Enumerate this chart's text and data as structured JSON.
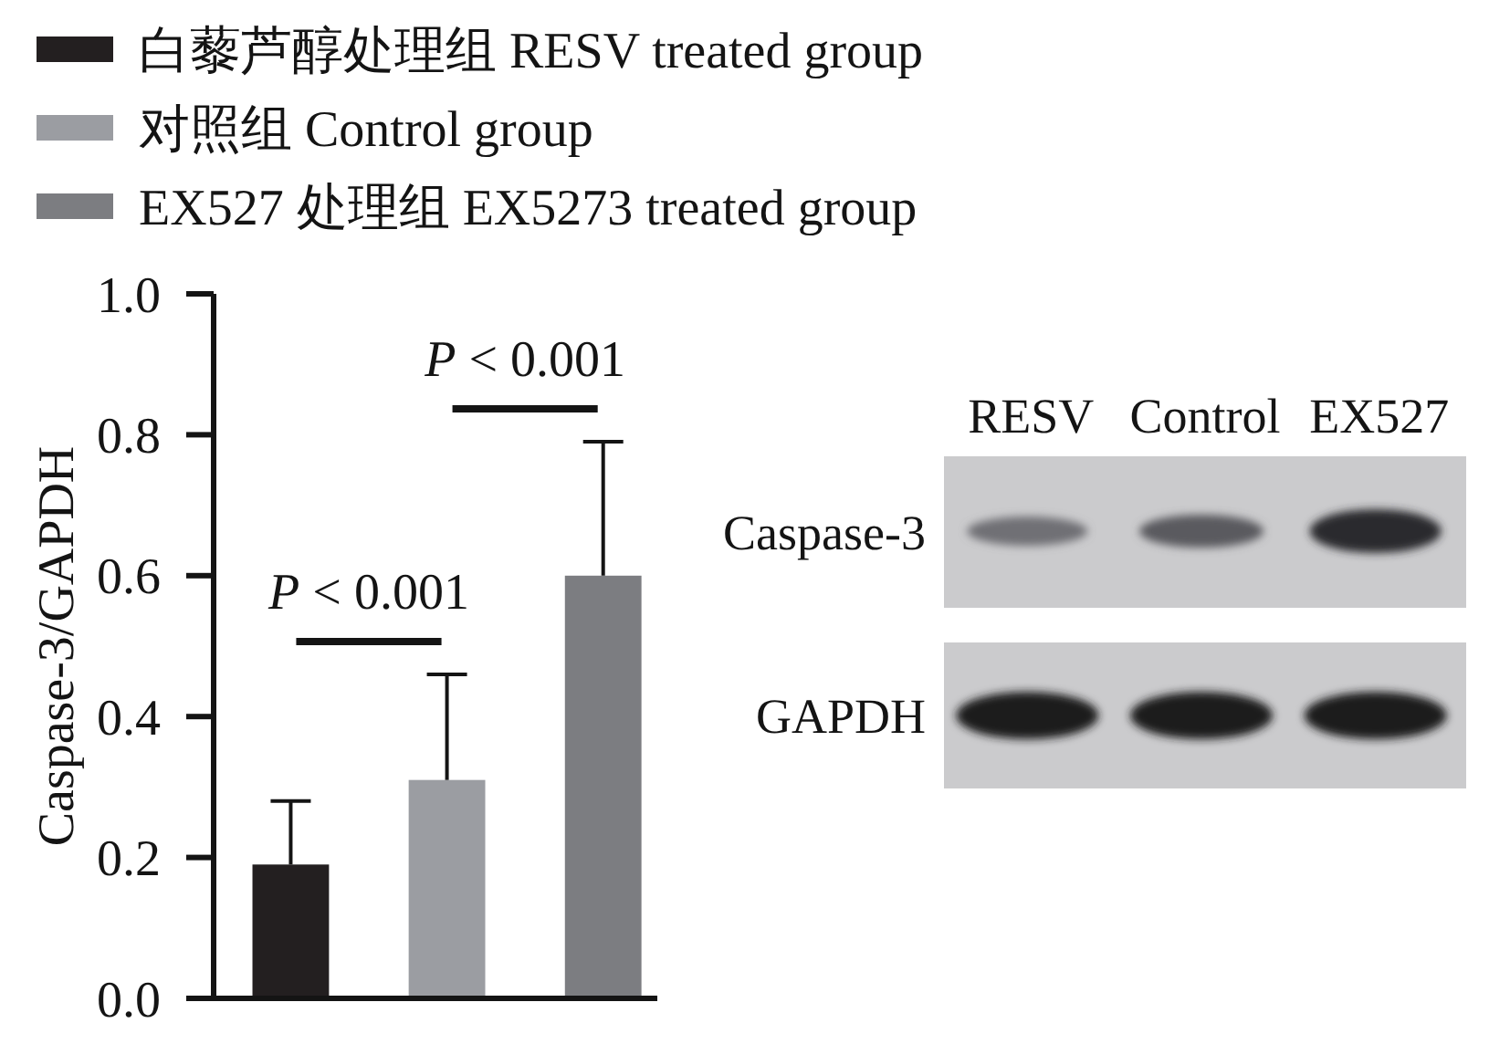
{
  "chart_data": {
    "type": "bar",
    "ylabel": "Caspase-3/GAPDH",
    "categories": [
      null
    ],
    "series": [
      {
        "name": "白藜芦醇处理组 RESV treated group",
        "color": "#231f20",
        "values": [
          0.19
        ],
        "errors": [
          [
            0.19,
            0.28
          ]
        ]
      },
      {
        "name": "对照组 Control group",
        "color": "#9b9da2",
        "values": [
          0.31
        ],
        "errors": [
          [
            0.31,
            0.46
          ]
        ]
      },
      {
        "name": "EX527 处理组 EX5273 treated group",
        "color": "#7c7d81",
        "values": [
          0.6
        ],
        "errors": [
          [
            0.6,
            0.79
          ]
        ]
      }
    ],
    "ylim": [
      0,
      1
    ],
    "yticks": [
      {
        "value": 0,
        "label": "0.0"
      },
      0.2,
      0.4,
      0.6,
      0.8,
      {
        "value": 1,
        "label": "1.0"
      }
    ],
    "grid": false,
    "legend": "top",
    "annotations": [
      "P < 0.001",
      "P < 0.001",
      "RESV",
      "Control",
      "EX527",
      "Caspase-3",
      "GAPDH"
    ]
  }
}
